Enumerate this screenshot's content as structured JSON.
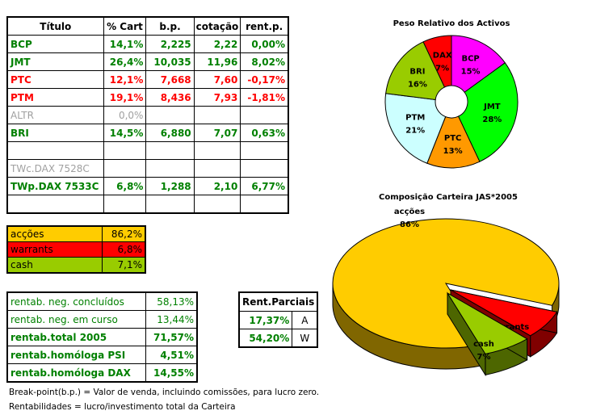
{
  "holdings": {
    "headers": [
      "Título",
      "% Cart",
      "b.p.",
      "cotação",
      "rent.p."
    ],
    "rows": [
      {
        "titulo": "BCP",
        "cart": "14,1%",
        "bp": "2,225",
        "cotacao": "2,22",
        "rent": "0,00%",
        "style": "green"
      },
      {
        "titulo": "JMT",
        "cart": "26,4%",
        "bp": "10,035",
        "cotacao": "11,96",
        "rent": "8,02%",
        "style": "green"
      },
      {
        "titulo": "PTC",
        "cart": "12,1%",
        "bp": "7,668",
        "cotacao": "7,60",
        "rent": "-0,17%",
        "style": "red"
      },
      {
        "titulo": "PTM",
        "cart": "19,1%",
        "bp": "8,436",
        "cotacao": "7,93",
        "rent": "-1,81%",
        "style": "red"
      },
      {
        "titulo": "ALTR",
        "cart": "0,0%",
        "bp": "",
        "cotacao": "",
        "rent": "",
        "style": "gray"
      },
      {
        "titulo": "BRI",
        "cart": "14,5%",
        "bp": "6,880",
        "cotacao": "7,07",
        "rent": "0,63%",
        "style": "green"
      },
      {
        "titulo": "",
        "cart": "",
        "bp": "",
        "cotacao": "",
        "rent": "",
        "style": "green"
      },
      {
        "titulo": "TWc.DAX 7528C",
        "cart": "",
        "bp": "",
        "cotacao": "",
        "rent": "",
        "style": "gray"
      },
      {
        "titulo": "TWp.DAX 7533C",
        "cart": "6,8%",
        "bp": "1,288",
        "cotacao": "2,10",
        "rent": "6,77%",
        "style": "green"
      },
      {
        "titulo": "",
        "cart": "",
        "bp": "",
        "cotacao": "",
        "rent": "",
        "style": "green"
      }
    ]
  },
  "allocation": [
    {
      "label": "acções",
      "value": "86,2%",
      "color": "#ffcc00"
    },
    {
      "label": "warrants",
      "value": "6,8%",
      "color": "#ff0000"
    },
    {
      "label": "cash",
      "value": "7,1%",
      "color": "#99cc00"
    }
  ],
  "returns": [
    {
      "label": "rentab. neg. concluídos",
      "value": "58,13%",
      "bold": false
    },
    {
      "label": "rentab. neg. em curso",
      "value": "13,44%",
      "bold": false
    },
    {
      "label": "rentab.total 2005",
      "value": "71,57%",
      "bold": true
    },
    {
      "label": "rentab.homóloga PSI",
      "value": "4,51%",
      "bold": true
    },
    {
      "label": "rentab.homóloga DAX",
      "value": "14,55%",
      "bold": true
    }
  ],
  "partial": {
    "title": "Rent.Parciais",
    "rows": [
      {
        "value": "17,37%",
        "code": "A"
      },
      {
        "value": "54,20%",
        "code": "W"
      }
    ]
  },
  "notes": [
    "Break-point(b.p.) = Valor de venda, incluindo comissões, para lucro zero.",
    "Rentabilidades = lucro/investimento total da Carteira"
  ],
  "chart_data": [
    {
      "type": "pie",
      "variant": "doughnut",
      "title": "Peso Relativo dos Activos",
      "categories": [
        "BCP",
        "JMT",
        "PTC",
        "PTM",
        "BRI",
        "DAX"
      ],
      "values": [
        15,
        28,
        13,
        21,
        16,
        7
      ],
      "labels": [
        "15%",
        "28%",
        "13%",
        "21%",
        "16%",
        "7%"
      ],
      "colors": [
        "#ff00ff",
        "#00ff00",
        "#ff9900",
        "#ccffff",
        "#99cc00",
        "#ff0000"
      ]
    },
    {
      "type": "pie",
      "variant": "3d-exploded",
      "title": "Composição Carteira JAS*2005",
      "categories": [
        "acções",
        "warrants",
        "cash"
      ],
      "values": [
        86,
        7,
        7
      ],
      "labels": [
        "86%",
        "7%",
        "7%"
      ],
      "colors": [
        "#ffcc00",
        "#ff0000",
        "#99cc00"
      ],
      "side_colors": [
        "#806600",
        "#800000",
        "#4d6600"
      ]
    }
  ]
}
